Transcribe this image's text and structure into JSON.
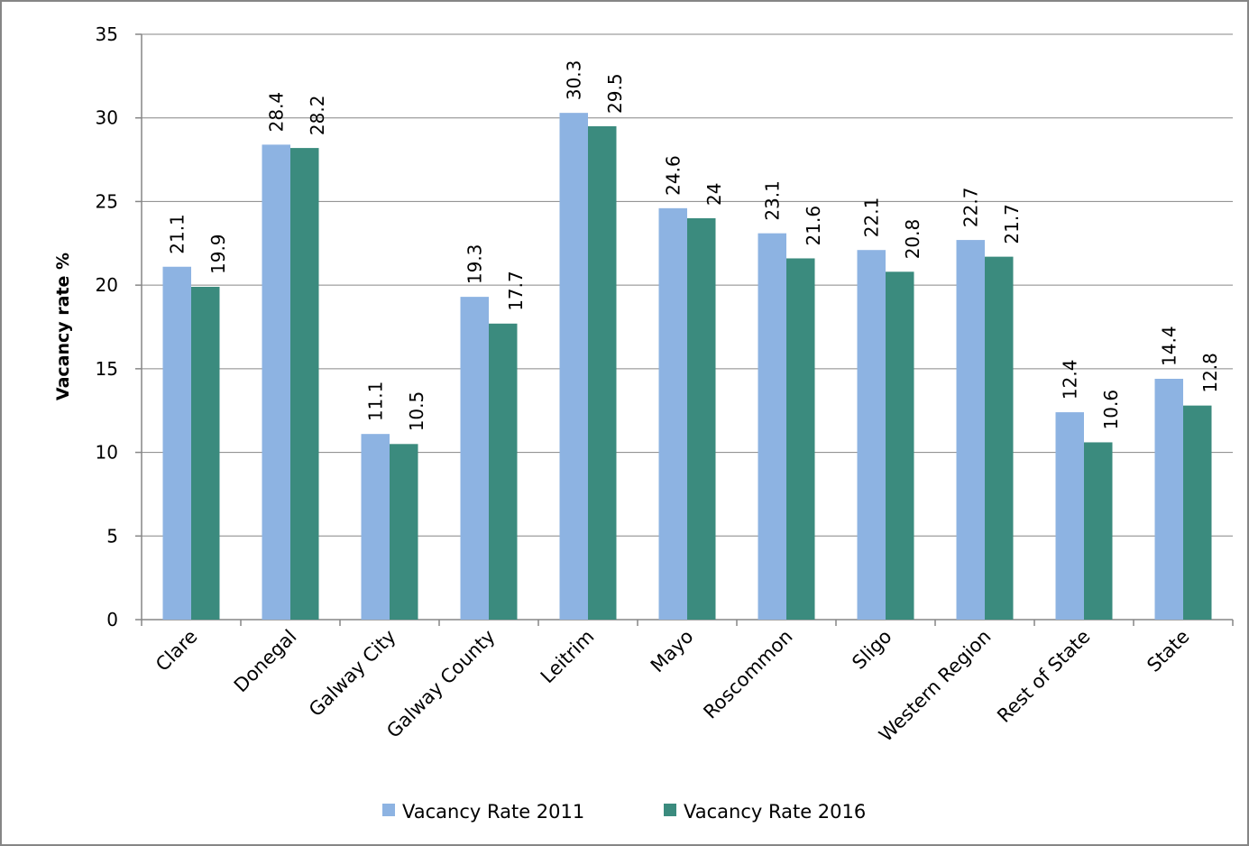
{
  "chart_data": {
    "type": "bar",
    "y_label": "Vacancy rate %",
    "categories": [
      "Clare",
      "Donegal",
      "Galway City",
      "Galway County",
      "Leitrim",
      "Mayo",
      "Roscommon",
      "Sligo",
      "Western Region",
      "Rest of State",
      "State"
    ],
    "series": [
      {
        "name": "Vacancy Rate 2011",
        "color": "#8db3e2",
        "values": [
          21.1,
          28.4,
          11.1,
          19.3,
          30.3,
          24.6,
          23.1,
          22.1,
          22.7,
          12.4,
          14.4
        ]
      },
      {
        "name": "Vacancy Rate 2016",
        "color": "#3b8b7e",
        "values": [
          19.9,
          28.2,
          10.5,
          17.7,
          29.5,
          24,
          21.6,
          20.8,
          21.7,
          10.6,
          12.8
        ]
      }
    ],
    "ylim": [
      0,
      35
    ],
    "yticks": [
      0,
      5,
      10,
      15,
      20,
      25,
      30,
      35
    ],
    "grid": true,
    "legend": "bottom"
  }
}
